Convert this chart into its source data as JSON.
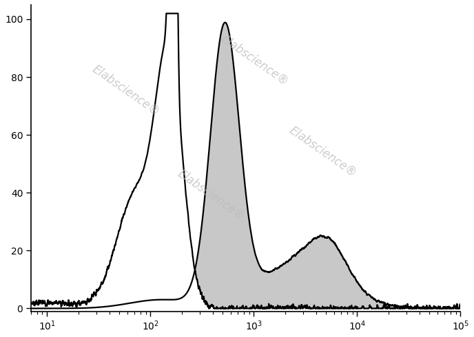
{
  "title": "",
  "xlabel": "",
  "ylabel": "",
  "xlim": [
    7,
    100000
  ],
  "ylim": [
    -1,
    105
  ],
  "yticks": [
    0,
    20,
    40,
    60,
    80,
    100
  ],
  "background_color": "#ffffff",
  "antibody_fill_color": "#c8c8c8",
  "antibody_line_color": "#000000",
  "isotype_color": "#000000",
  "line_width": 1.6,
  "isotype_peak_log": 2.2,
  "antibody_peak_log": 2.72
}
